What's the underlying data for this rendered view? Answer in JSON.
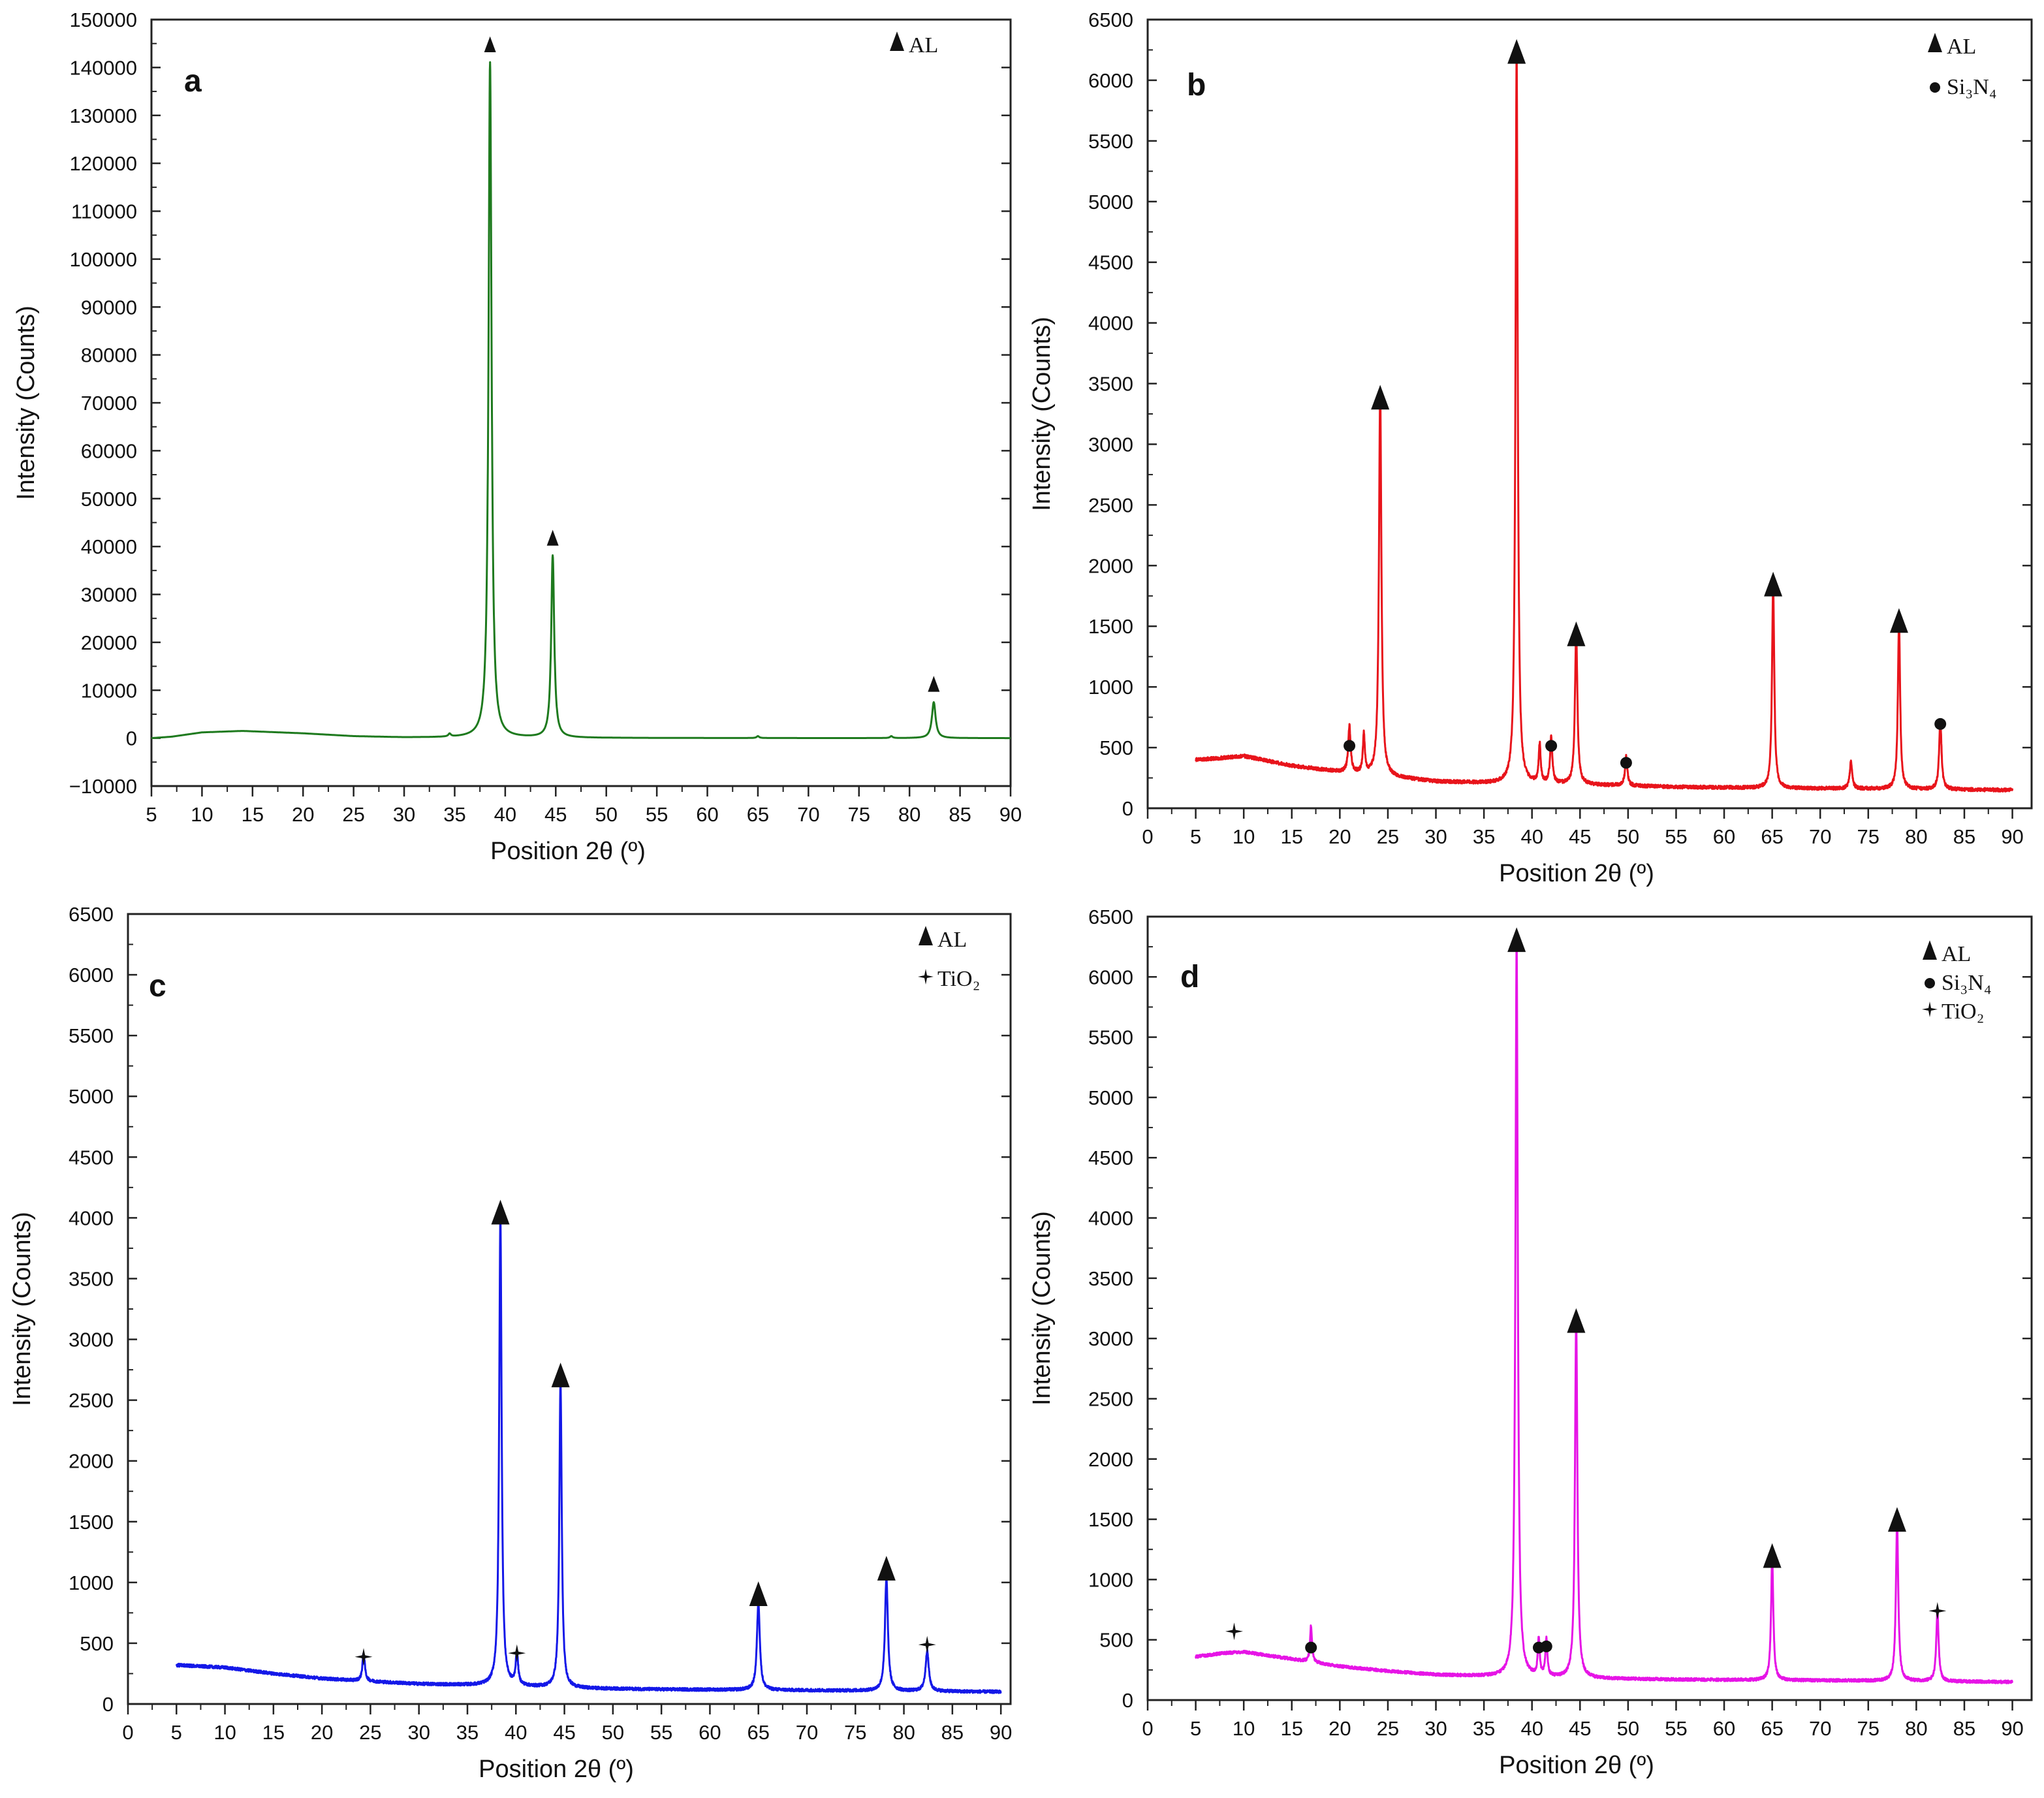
{
  "chart_data": [
    {
      "panel_label": "a",
      "type": "line",
      "color": "#1e7a1e",
      "xlabel": "Position 2θ (º)",
      "ylabel": "Intensity  (Counts)",
      "xlim": [
        5,
        90
      ],
      "ylim": [
        -10000,
        150000
      ],
      "xticks": [
        "5",
        "10",
        "15",
        "20",
        "25",
        "30",
        "35",
        "40",
        "45",
        "50",
        "55",
        "60",
        "65",
        "70",
        "75",
        "80",
        "85",
        "90"
      ],
      "yticks": [
        "−10000",
        "0",
        "10000",
        "20000",
        "30000",
        "40000",
        "50000",
        "60000",
        "70000",
        "80000",
        "90000",
        "100000",
        "110000",
        "120000",
        "130000",
        "140000",
        "150000"
      ],
      "legend": [
        {
          "marker": "triangle",
          "label": "AL"
        }
      ],
      "series": [
        {
          "baseline": [
            [
              5,
              0
            ],
            [
              7,
              300
            ],
            [
              10,
              1200
            ],
            [
              14,
              1500
            ],
            [
              20,
              1000
            ],
            [
              25,
              400
            ],
            [
              30,
              150
            ],
            [
              36,
              100
            ],
            [
              45,
              50
            ],
            [
              60,
              20
            ],
            [
              90,
              0
            ]
          ],
          "noise": 0,
          "peaks": [
            {
              "x": 34.5,
              "y": 600,
              "w": 0.15
            },
            {
              "x": 38.5,
              "y": 141000,
              "w": 0.18
            },
            {
              "x": 44.7,
              "y": 38000,
              "w": 0.18
            },
            {
              "x": 65.0,
              "y": 400,
              "w": 0.15
            },
            {
              "x": 78.2,
              "y": 400,
              "w": 0.15
            },
            {
              "x": 82.4,
              "y": 7500,
              "w": 0.22
            }
          ]
        }
      ],
      "markers": [
        {
          "type": "triangle",
          "x": 38.5,
          "y": 141000
        },
        {
          "type": "triangle",
          "x": 44.7,
          "y": 38000
        },
        {
          "type": "triangle",
          "x": 82.4,
          "y": 7500
        }
      ]
    },
    {
      "panel_label": "b",
      "type": "line",
      "color": "#e8141b",
      "xlabel": "Position 2θ (º)",
      "ylabel": "Intensity  (Counts)",
      "xlim": [
        0,
        92
      ],
      "ylim": [
        0,
        6500
      ],
      "xticks": [
        "0",
        "5",
        "10",
        "15",
        "20",
        "25",
        "30",
        "35",
        "40",
        "45",
        "50",
        "55",
        "60",
        "65",
        "70",
        "75",
        "80",
        "85",
        "90"
      ],
      "yticks": [
        "0",
        "500",
        "1000",
        "1500",
        "2000",
        "2500",
        "3000",
        "3500",
        "4000",
        "4500",
        "5000",
        "5500",
        "6000",
        "6500"
      ],
      "legend": [
        {
          "marker": "triangle",
          "label": "AL"
        },
        {
          "marker": "circle",
          "label": "Si₃N₄"
        }
      ],
      "series": [
        {
          "x_start": 5,
          "x_end": 90,
          "baseline": [
            [
              5,
              400
            ],
            [
              7,
              410
            ],
            [
              10,
              430
            ],
            [
              15,
              350
            ],
            [
              20,
              300
            ],
            [
              25,
              260
            ],
            [
              30,
              220
            ],
            [
              38,
              200
            ],
            [
              45,
              195
            ],
            [
              55,
              175
            ],
            [
              65,
              165
            ],
            [
              75,
              160
            ],
            [
              90,
              150
            ]
          ],
          "noise": 14,
          "peaks": [
            {
              "x": 21.0,
              "y": 380,
              "w": 0.15
            },
            {
              "x": 22.5,
              "y": 320,
              "w": 0.12
            },
            {
              "x": 24.2,
              "y": 3200,
              "w": 0.15
            },
            {
              "x": 38.4,
              "y": 6050,
              "w": 0.14
            },
            {
              "x": 40.8,
              "y": 320,
              "w": 0.12
            },
            {
              "x": 42.0,
              "y": 380,
              "w": 0.14
            },
            {
              "x": 44.6,
              "y": 1250,
              "w": 0.15
            },
            {
              "x": 49.8,
              "y": 240,
              "w": 0.14
            },
            {
              "x": 65.1,
              "y": 1660,
              "w": 0.14
            },
            {
              "x": 73.2,
              "y": 220,
              "w": 0.15
            },
            {
              "x": 78.2,
              "y": 1360,
              "w": 0.14
            },
            {
              "x": 82.5,
              "y": 560,
              "w": 0.15
            }
          ]
        }
      ],
      "markers": [
        {
          "type": "triangle",
          "x": 24.2,
          "y": 3200
        },
        {
          "type": "triangle",
          "x": 38.4,
          "y": 6050
        },
        {
          "type": "triangle",
          "x": 44.6,
          "y": 1250
        },
        {
          "type": "triangle",
          "x": 65.1,
          "y": 1660
        },
        {
          "type": "triangle",
          "x": 78.2,
          "y": 1360
        },
        {
          "type": "circle",
          "x": 21.0,
          "y": 380
        },
        {
          "type": "circle",
          "x": 42.0,
          "y": 380
        },
        {
          "type": "circle",
          "x": 49.8,
          "y": 240
        },
        {
          "type": "circle",
          "x": 82.5,
          "y": 560
        }
      ]
    },
    {
      "panel_label": "c",
      "type": "line",
      "color": "#1418e8",
      "xlabel": "Position 2θ (º)",
      "ylabel": "Intensity  (Counts)",
      "xlim": [
        0,
        91
      ],
      "ylim": [
        0,
        6500
      ],
      "xticks": [
        "0",
        "5",
        "10",
        "15",
        "20",
        "25",
        "30",
        "35",
        "40",
        "45",
        "50",
        "55",
        "60",
        "65",
        "70",
        "75",
        "80",
        "85",
        "90"
      ],
      "yticks": [
        "0",
        "500",
        "1000",
        "1500",
        "2000",
        "2500",
        "3000",
        "3500",
        "4000",
        "4500",
        "5000",
        "5500",
        "6000",
        "6500"
      ],
      "legend": [
        {
          "marker": "triangle",
          "label": "AL"
        },
        {
          "marker": "star",
          "label": "TiO₂"
        }
      ],
      "series": [
        {
          "x_start": 5,
          "x_end": 90,
          "baseline": [
            [
              5,
              320
            ],
            [
              10,
              300
            ],
            [
              15,
              250
            ],
            [
              20,
              210
            ],
            [
              25,
              185
            ],
            [
              30,
              165
            ],
            [
              38,
              150
            ],
            [
              45,
              130
            ],
            [
              55,
              120
            ],
            [
              65,
              115
            ],
            [
              75,
              110
            ],
            [
              90,
              100
            ]
          ],
          "noise": 12,
          "peaks": [
            {
              "x": 24.3,
              "y": 230,
              "w": 0.15
            },
            {
              "x": 38.4,
              "y": 3860,
              "w": 0.15
            },
            {
              "x": 40.1,
              "y": 260,
              "w": 0.15
            },
            {
              "x": 44.6,
              "y": 2520,
              "w": 0.15
            },
            {
              "x": 65.0,
              "y": 720,
              "w": 0.18
            },
            {
              "x": 78.2,
              "y": 930,
              "w": 0.18
            },
            {
              "x": 82.4,
              "y": 330,
              "w": 0.2
            }
          ]
        }
      ],
      "markers": [
        {
          "type": "triangle",
          "x": 38.4,
          "y": 3860
        },
        {
          "type": "triangle",
          "x": 44.6,
          "y": 2520
        },
        {
          "type": "triangle",
          "x": 65.0,
          "y": 720
        },
        {
          "type": "triangle",
          "x": 78.2,
          "y": 930
        },
        {
          "type": "star",
          "x": 24.3,
          "y": 230
        },
        {
          "type": "star",
          "x": 40.1,
          "y": 260
        },
        {
          "type": "star",
          "x": 82.4,
          "y": 330
        }
      ]
    },
    {
      "panel_label": "d",
      "type": "line",
      "color": "#e614e6",
      "xlabel": "Position 2θ (º)",
      "ylabel": "Intensity  (Counts)",
      "xlim": [
        0,
        92
      ],
      "ylim": [
        0,
        6500
      ],
      "xticks": [
        "0",
        "5",
        "10",
        "15",
        "20",
        "25",
        "30",
        "35",
        "40",
        "45",
        "50",
        "55",
        "60",
        "65",
        "70",
        "75",
        "80",
        "85",
        "90"
      ],
      "yticks": [
        "0",
        "500",
        "1000",
        "1500",
        "2000",
        "2500",
        "3000",
        "3500",
        "4000",
        "4500",
        "5000",
        "5500",
        "6000",
        "6500"
      ],
      "legend": [
        {
          "marker": "triangle",
          "label": "AL"
        },
        {
          "marker": "circle",
          "label": "Si₃N₄"
        },
        {
          "marker": "star",
          "label": "TiO₂"
        }
      ],
      "series": [
        {
          "x_start": 5,
          "x_end": 90,
          "baseline": [
            [
              5,
              360
            ],
            [
              8,
              390
            ],
            [
              10,
              400
            ],
            [
              15,
              340
            ],
            [
              20,
              280
            ],
            [
              25,
              240
            ],
            [
              30,
              210
            ],
            [
              38,
              190
            ],
            [
              45,
              180
            ],
            [
              55,
              170
            ],
            [
              65,
              165
            ],
            [
              75,
              160
            ],
            [
              90,
              150
            ]
          ],
          "noise": 12,
          "peaks": [
            {
              "x": 17.0,
              "y": 300,
              "w": 0.12
            },
            {
              "x": 38.4,
              "y": 6120,
              "w": 0.15
            },
            {
              "x": 40.7,
              "y": 300,
              "w": 0.12
            },
            {
              "x": 41.5,
              "y": 310,
              "w": 0.12
            },
            {
              "x": 44.6,
              "y": 2960,
              "w": 0.15
            },
            {
              "x": 65.0,
              "y": 1010,
              "w": 0.14
            },
            {
              "x": 78.0,
              "y": 1310,
              "w": 0.15
            },
            {
              "x": 82.2,
              "y": 580,
              "w": 0.15
            }
          ]
        }
      ],
      "markers": [
        {
          "type": "triangle",
          "x": 38.4,
          "y": 6120
        },
        {
          "type": "triangle",
          "x": 44.6,
          "y": 2960
        },
        {
          "type": "triangle",
          "x": 65.0,
          "y": 1010
        },
        {
          "type": "triangle",
          "x": 78.0,
          "y": 1310
        },
        {
          "type": "circle",
          "x": 17.0,
          "y": 300
        },
        {
          "type": "circle",
          "x": 40.7,
          "y": 300
        },
        {
          "type": "circle",
          "x": 41.5,
          "y": 310
        },
        {
          "type": "star",
          "x": 9.0,
          "y": 410
        },
        {
          "type": "star",
          "x": 82.2,
          "y": 580
        }
      ]
    }
  ]
}
